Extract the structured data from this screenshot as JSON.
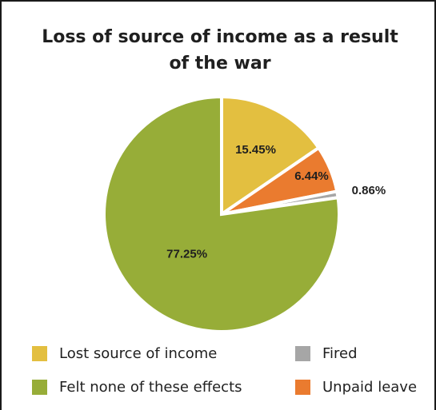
{
  "chart_data": {
    "type": "pie",
    "title": "Loss of source of income as a result of the war",
    "slices": [
      {
        "label": "Lost source of income",
        "value": 15.45,
        "value_label": "15.45%",
        "color": "#e3bf40"
      },
      {
        "label": "Unpaid leave",
        "value": 6.44,
        "value_label": "6.44%",
        "color": "#ea7b2f"
      },
      {
        "label": "Fired",
        "value": 0.86,
        "value_label": "0.86%",
        "color": "#a6a6a6"
      },
      {
        "label": "Felt none of these effects",
        "value": 77.25,
        "value_label": "77.25%",
        "color": "#97ad38"
      }
    ],
    "legend_placement": "bottom",
    "legend": [
      {
        "label": "Lost source of income",
        "color": "#e3bf40"
      },
      {
        "label": "Fired",
        "color": "#a6a6a6"
      },
      {
        "label": "Felt none of these effects",
        "color": "#97ad38"
      },
      {
        "label": "Unpaid leave",
        "color": "#ea7b2f"
      }
    ]
  }
}
